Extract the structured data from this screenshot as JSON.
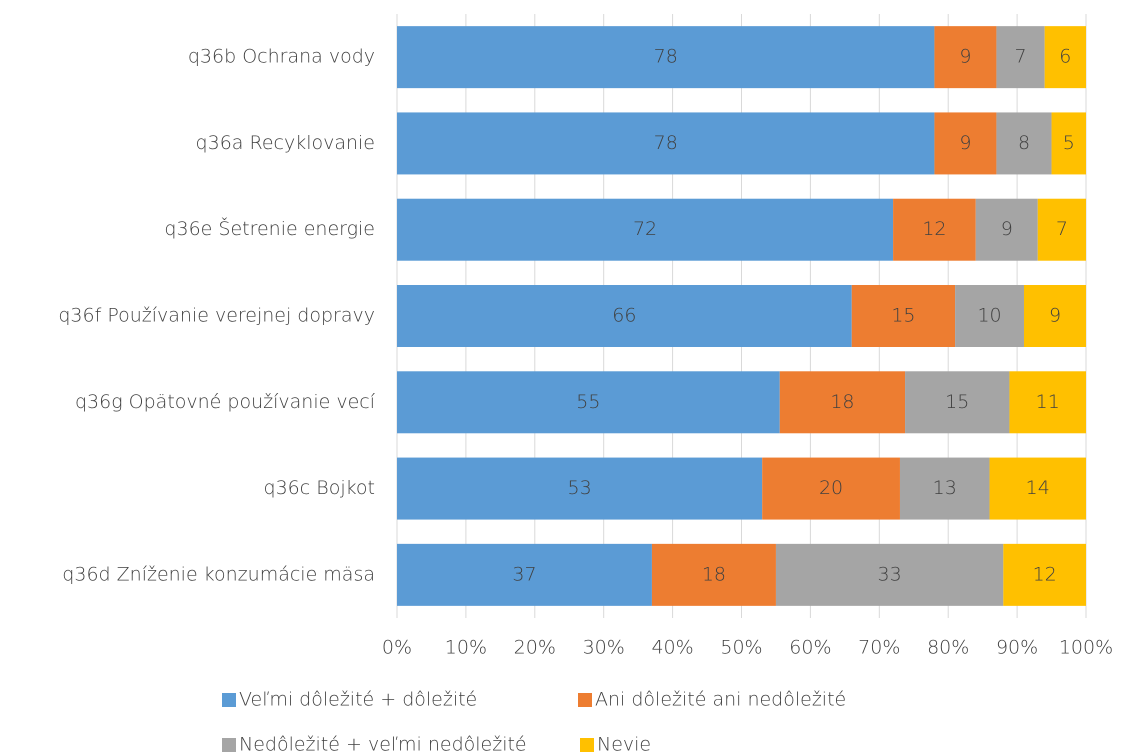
{
  "chart_data": {
    "type": "bar",
    "orientation": "horizontal",
    "stacked": "percent",
    "categories": [
      "q36b Ochrana vody",
      "q36a Recyklovanie",
      "q36e Šetrenie energie",
      "q36f Používanie verejnej dopravy",
      "q36g Opätovné používanie vecí",
      "q36c Bojkot",
      "q36d Zníženie konzumácie mäsa"
    ],
    "series": [
      {
        "name": "Veľmi dôležité + dôležité",
        "color": "#5b9bd5",
        "values": [
          78,
          78,
          72,
          66,
          55,
          53,
          37
        ]
      },
      {
        "name": "Ani dôležité ani nedôležité",
        "color": "#ed7d31",
        "values": [
          9,
          9,
          12,
          15,
          18,
          20,
          18
        ]
      },
      {
        "name": "Nedôležité + veľmi nedôležité",
        "color": "#a5a5a5",
        "values": [
          7,
          8,
          9,
          10,
          15,
          13,
          33
        ]
      },
      {
        "name": "Nevie",
        "color": "#ffc000",
        "values": [
          6,
          5,
          7,
          9,
          11,
          14,
          12
        ]
      }
    ],
    "xlim": [
      0,
      100
    ],
    "xticks": [
      {
        "value": 0,
        "label": "0%"
      },
      {
        "value": 10,
        "label": "10%"
      },
      {
        "value": 20,
        "label": "20%"
      },
      {
        "value": 30,
        "label": "30%"
      },
      {
        "value": 40,
        "label": "40%"
      },
      {
        "value": 50,
        "label": "50%"
      },
      {
        "value": 60,
        "label": "60%"
      },
      {
        "value": 70,
        "label": "70%"
      },
      {
        "value": 80,
        "label": "80%"
      },
      {
        "value": 90,
        "label": "90%"
      },
      {
        "value": 100,
        "label": "100%"
      }
    ],
    "grid": true,
    "legend": "bottom"
  }
}
